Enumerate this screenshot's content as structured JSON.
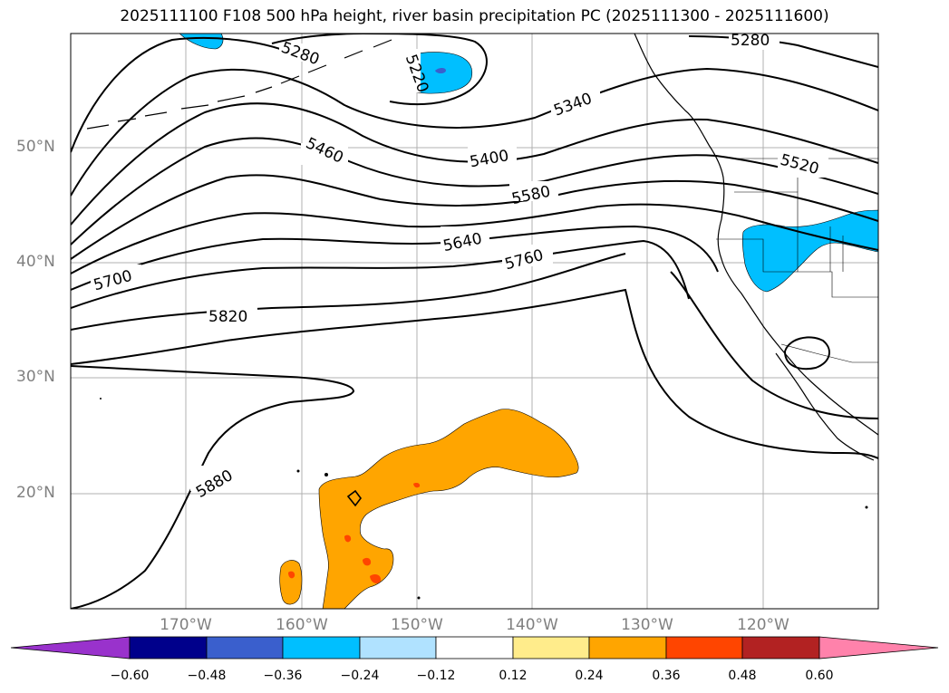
{
  "title": "2025111100 F108 500 hPa height, river basin precipitation PC (2025111300 - 2025111600)",
  "axes": {
    "longitude_labels": [
      "170°W",
      "160°W",
      "150°W",
      "140°W",
      "130°W",
      "120°W"
    ],
    "latitude_labels": [
      "50°N",
      "40°N",
      "30°N",
      "20°N"
    ]
  },
  "contours": {
    "variable": "500 hPa height",
    "labels": [
      "5280",
      "5220",
      "5280",
      "5340",
      "5460",
      "5400",
      "5520",
      "5580",
      "5640",
      "5760",
      "5700",
      "5820",
      "5880"
    ]
  },
  "colorbar": {
    "ticks": [
      "−0.60",
      "−0.48",
      "−0.36",
      "−0.24",
      "−0.12",
      "0.12",
      "0.24",
      "0.36",
      "0.48",
      "0.60"
    ],
    "colors": [
      "#9932cc",
      "#00008b",
      "#3a5fcd",
      "#00bfff",
      "#b0e2ff",
      "#ffffff",
      "#ffec8b",
      "#ffa500",
      "#ff4500",
      "#b22222",
      "#ff82ab"
    ]
  },
  "colors": {
    "positive_precip": "#ffa500",
    "strong_positive_precip": "#ff4500",
    "negative_precip": "#00bfff",
    "gridline": "#b0b0b0",
    "axis_label": "#808080"
  }
}
